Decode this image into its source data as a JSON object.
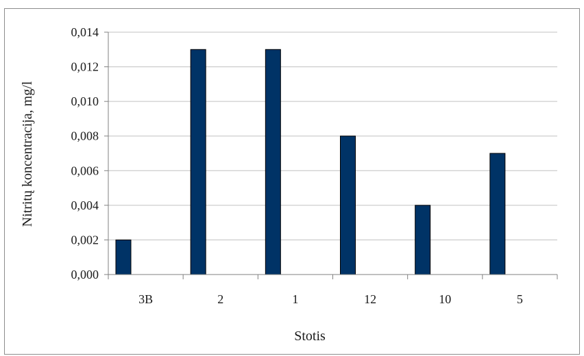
{
  "chart_data": {
    "type": "bar",
    "categories": [
      "3B",
      "2",
      "1",
      "12",
      "10",
      "5"
    ],
    "values": [
      0.002,
      0.013,
      0.013,
      0.008,
      0.004,
      0.007
    ],
    "yticks": [
      "0,000",
      "0,002",
      "0,004",
      "0,006",
      "0,008",
      "0,010",
      "0,012",
      "0,014"
    ],
    "ylim": [
      0,
      0.014
    ],
    "xlabel": "Stotis",
    "ylabel": "Nitritų  koncentracija,  mg/l",
    "grid": true,
    "bar_color": "#003366",
    "grid_color": "#c0c0c0"
  }
}
